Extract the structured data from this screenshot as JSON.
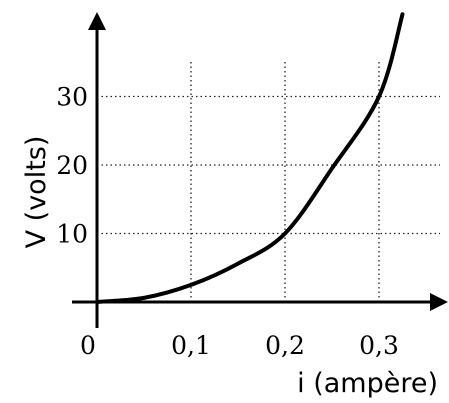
{
  "chart_data": {
    "type": "line",
    "xlabel": "i (ampère)",
    "ylabel": "V (volts)",
    "xlim": [
      0,
      0.36
    ],
    "ylim": [
      0,
      40
    ],
    "x_ticks": [
      0.1,
      0.2,
      0.3
    ],
    "x_tick_labels": [
      "0,1",
      "0,2",
      "0,3"
    ],
    "y_ticks": [
      10,
      20,
      30
    ],
    "y_tick_labels": [
      "10",
      "20",
      "30"
    ],
    "origin_label": "0",
    "grid": true,
    "legend": "none",
    "series": [
      {
        "x": [
          0,
          0.05,
          0.1,
          0.15,
          0.2,
          0.25,
          0.3,
          0.325
        ],
        "y": [
          0,
          0.6,
          2.5,
          5.6,
          10,
          19.5,
          30,
          42
        ]
      }
    ]
  }
}
